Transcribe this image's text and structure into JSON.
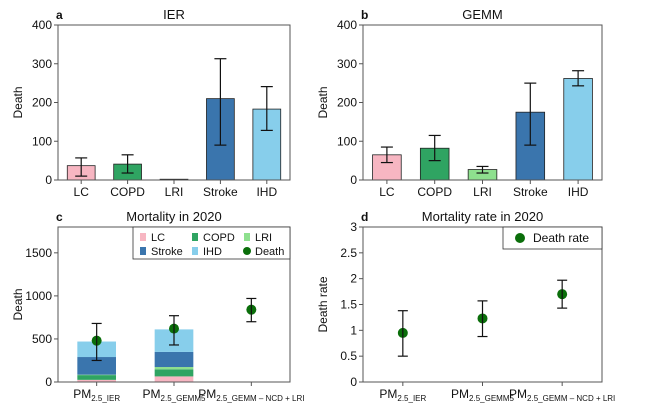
{
  "chart_data": [
    {
      "panel": "a",
      "type": "bar",
      "title": "IER",
      "xlabel": "",
      "ylabel": "Death",
      "ylim": [
        0,
        400
      ],
      "yticks": [
        0,
        100,
        200,
        300,
        400
      ],
      "categories": [
        "LC",
        "COPD",
        "LRI",
        "Stroke",
        "IHD"
      ],
      "values": [
        37,
        41,
        2,
        210,
        183
      ],
      "error_low": [
        10,
        18,
        2,
        90,
        128
      ],
      "error_high": [
        57,
        65,
        2,
        313,
        241
      ],
      "colors": [
        "#f7b6c2",
        "#2fa462",
        "#8ee08e",
        "#3a75ad",
        "#87ceeb"
      ]
    },
    {
      "panel": "b",
      "type": "bar",
      "title": "GEMM",
      "xlabel": "",
      "ylabel": "Death",
      "ylim": [
        0,
        400
      ],
      "yticks": [
        0,
        100,
        200,
        300,
        400
      ],
      "categories": [
        "LC",
        "COPD",
        "LRI",
        "Stroke",
        "IHD"
      ],
      "values": [
        65,
        82,
        27,
        175,
        262
      ],
      "error_low": [
        45,
        50,
        18,
        90,
        243
      ],
      "error_high": [
        85,
        115,
        35,
        250,
        282
      ],
      "colors": [
        "#f7b6c2",
        "#2fa462",
        "#8ee08e",
        "#3a75ad",
        "#87ceeb"
      ]
    },
    {
      "panel": "c",
      "type": "bar",
      "stacked": true,
      "title": "Mortality in 2020",
      "ylabel": "Death",
      "ylim": [
        0,
        1800
      ],
      "yticks": [
        0,
        500,
        1000,
        1500
      ],
      "categories": [
        {
          "main": "PM",
          "sub": "2.5_IER"
        },
        {
          "main": "PM",
          "sub": "2.5_GEMM5"
        },
        {
          "main": "PM",
          "sub": "2.5_GEMM – NCD + LRI"
        }
      ],
      "series": [
        {
          "name": "LC",
          "color": "#f7b6c2",
          "values": [
            25,
            65,
            0
          ]
        },
        {
          "name": "COPD",
          "color": "#2fa462",
          "values": [
            55,
            82,
            0
          ]
        },
        {
          "name": "LRI",
          "color": "#8ee08e",
          "values": [
            5,
            27,
            0
          ]
        },
        {
          "name": "Stroke",
          "color": "#3a75ad",
          "values": [
            205,
            175,
            0
          ]
        },
        {
          "name": "IHD",
          "color": "#87ceeb",
          "values": [
            180,
            262,
            0
          ]
        }
      ],
      "points": {
        "name": "Death",
        "color": "#0a6e0a",
        "values": [
          480,
          620,
          840
        ],
        "error_low": [
          250,
          430,
          700
        ],
        "error_high": [
          680,
          770,
          970
        ]
      },
      "legend": "top-right"
    },
    {
      "panel": "d",
      "type": "scatter",
      "title": "Mortality rate in 2020",
      "ylabel": "Death rate",
      "ylim": [
        0,
        3
      ],
      "yticks": [
        "0",
        "0.5",
        "1",
        "1.5",
        "2",
        "2.5",
        "3"
      ],
      "categories": [
        {
          "main": "PM",
          "sub": "2.5_IER"
        },
        {
          "main": "PM",
          "sub": "2.5_GEMM5"
        },
        {
          "main": "PM",
          "sub": "2.5_GEMM – NCD + LRI"
        }
      ],
      "points": {
        "name": "Death rate",
        "color": "#0a6e0a",
        "values": [
          0.95,
          1.23,
          1.7
        ],
        "error_low": [
          0.5,
          0.88,
          1.43
        ],
        "error_high": [
          1.38,
          1.57,
          1.97
        ]
      },
      "legend": "top-right"
    }
  ]
}
